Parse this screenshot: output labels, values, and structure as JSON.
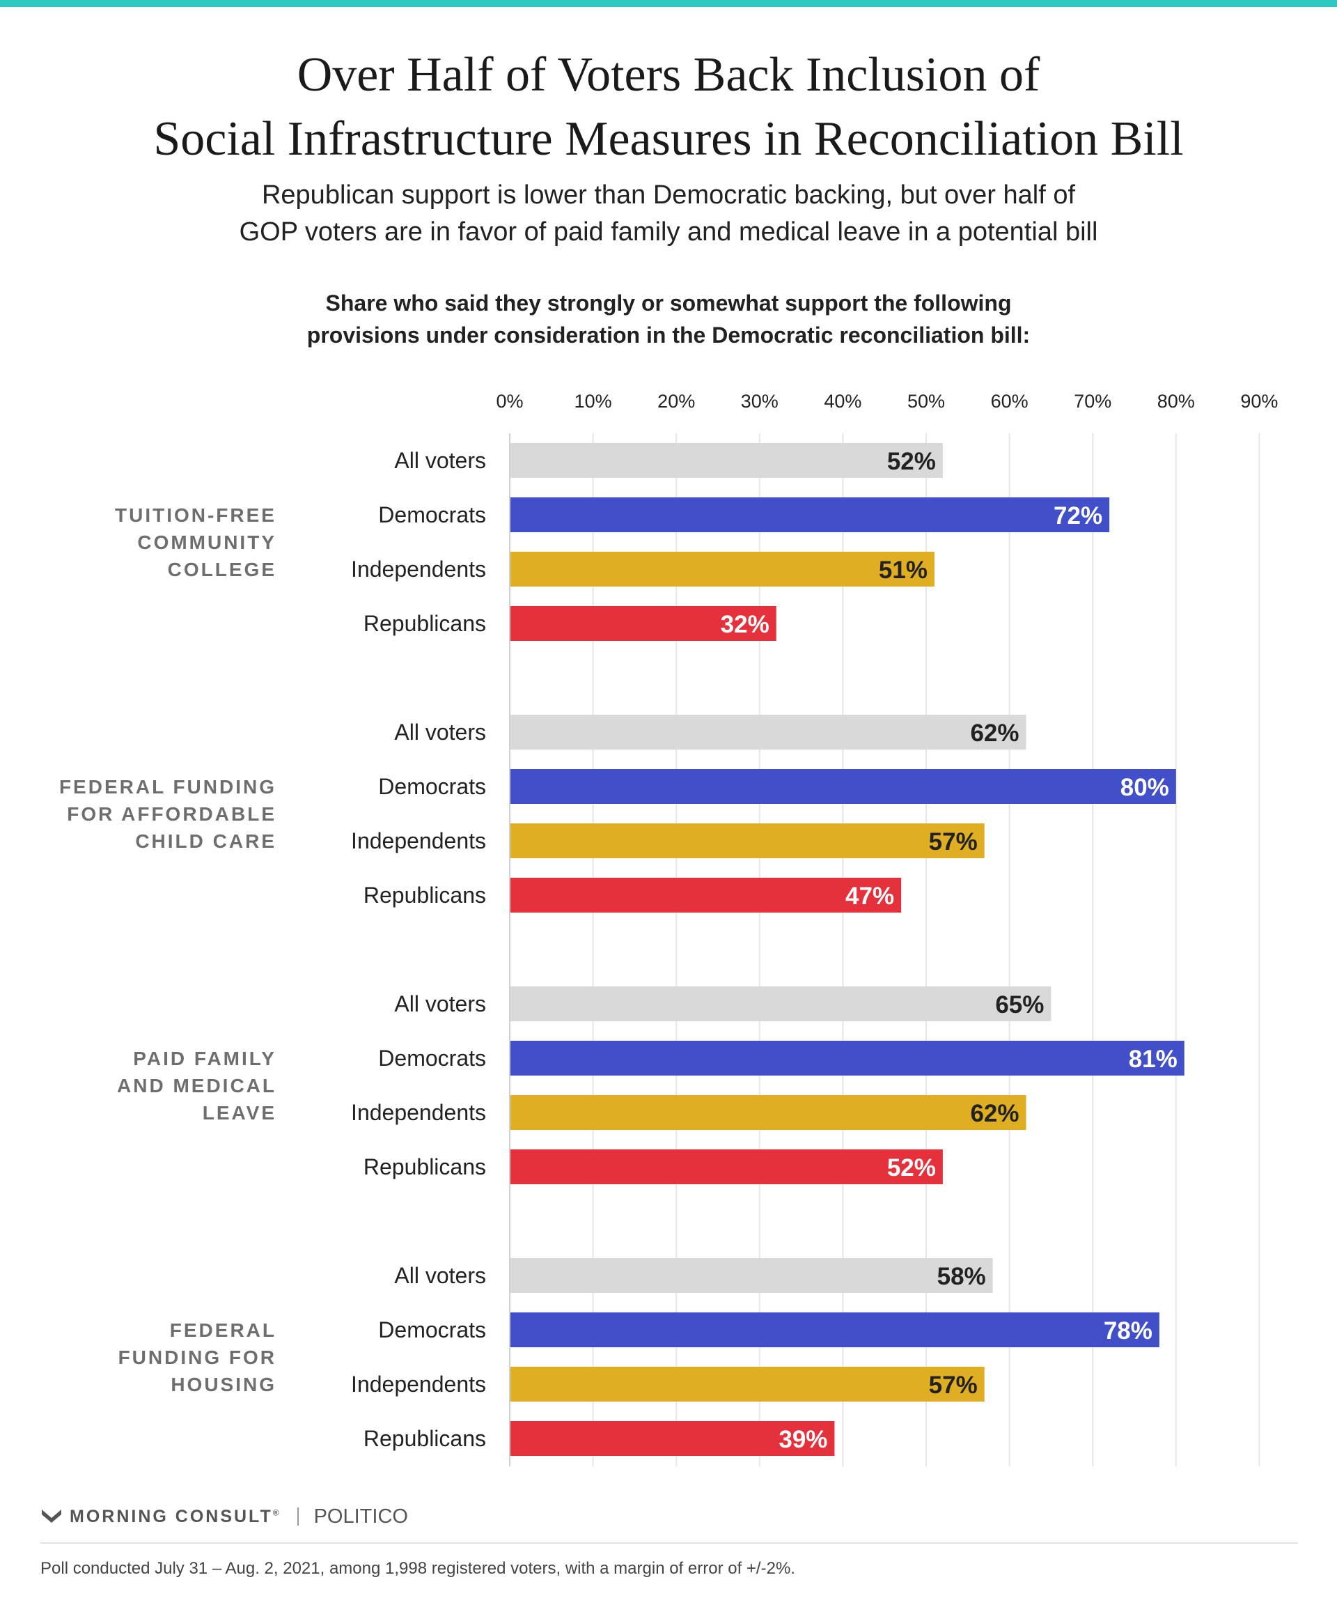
{
  "header": {
    "title_line1": "Over Half of Voters Back Inclusion of",
    "title_line2": "Social Infrastructure Measures in Reconciliation Bill",
    "subtitle_line1": "Republican support is lower than Democratic backing, but over half of",
    "subtitle_line2": "GOP voters are in favor of paid family and medical leave in a potential bill",
    "question_line1": "Share who said they strongly or somewhat support the following",
    "question_line2": "provisions under consideration in the Democratic reconciliation bill:"
  },
  "chart_data": {
    "type": "bar",
    "orientation": "horizontal",
    "xlim": [
      0,
      90
    ],
    "x_ticks": [
      "0%",
      "10%",
      "20%",
      "30%",
      "40%",
      "50%",
      "60%",
      "70%",
      "80%",
      "90%"
    ],
    "grid": true,
    "value_format": "{v}%",
    "row_labels": [
      "All voters",
      "Democrats",
      "Independents",
      "Republicans"
    ],
    "colors": {
      "All voters": "#d9d9d9",
      "Democrats": "#4150c9",
      "Independents": "#e0ae22",
      "Republicans": "#e5313b"
    },
    "label_colors": {
      "All voters": "#222222",
      "Democrats": "#ffffff",
      "Independents": "#222222",
      "Republicans": "#ffffff"
    },
    "groups": [
      {
        "label_lines": [
          "TUITION-FREE",
          "COMMUNITY",
          "COLLEGE"
        ],
        "values": [
          52,
          72,
          51,
          32
        ]
      },
      {
        "label_lines": [
          "FEDERAL FUNDING",
          "FOR AFFORDABLE",
          "CHILD CARE"
        ],
        "values": [
          62,
          80,
          57,
          47
        ]
      },
      {
        "label_lines": [
          "PAID FAMILY",
          "AND MEDICAL",
          "LEAVE"
        ],
        "values": [
          65,
          81,
          62,
          52
        ]
      },
      {
        "label_lines": [
          "FEDERAL",
          "FUNDING FOR",
          "HOUSING"
        ],
        "values": [
          58,
          78,
          57,
          39
        ]
      }
    ]
  },
  "footer": {
    "brand": "MORNING CONSULT",
    "brand_mark": "®",
    "partner": "POLITICO",
    "note": "Poll conducted July 31 – Aug. 2, 2021, among 1,998 registered voters, with a margin of error of +/-2%."
  }
}
